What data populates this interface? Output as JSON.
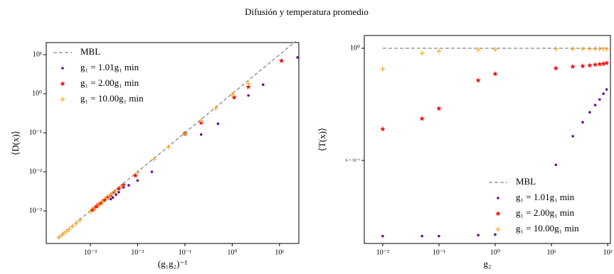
{
  "title": "Difusión y temperatura promedio",
  "chart_data": [
    {
      "type": "scatter",
      "x_label": "(g₁g₂)⁻¹",
      "y_label": "⟨D(x)⟩",
      "log_x": true,
      "log_y": true,
      "legend": "upper left",
      "xlim": [
        0.000117,
        25.6
      ],
      "ylim": [
        0.000146,
        20.4
      ],
      "xticks": [
        {
          "value": 0.001,
          "label": "10⁻³"
        },
        {
          "value": 0.01,
          "label": "10⁻²"
        },
        {
          "value": 0.1,
          "label": "10⁻¹"
        },
        {
          "value": 1,
          "label": "10⁰"
        },
        {
          "value": 10,
          "label": "10¹"
        }
      ],
      "yticks": [
        {
          "value": 0.001,
          "label": "10⁻³"
        },
        {
          "value": 0.01,
          "label": "10⁻²"
        },
        {
          "value": 0.1,
          "label": "10⁻¹"
        },
        {
          "value": 1,
          "label": "10⁰"
        },
        {
          "value": 10,
          "label": "10¹"
        }
      ],
      "series": [
        {
          "name": "MBL",
          "color": "#888888",
          "marker": "dashed-line",
          "x": [
            0.0002,
            22
          ],
          "values": [
            0.0002,
            22
          ]
        },
        {
          "name": "g₁ = 1.01g₁ min",
          "color": "#6a0d8a",
          "marker": "dot",
          "x": [
            0.0027,
            0.003,
            0.0035,
            0.004,
            0.005,
            0.0065,
            0.01,
            0.02,
            0.1,
            0.22,
            0.5,
            2.2,
            4.5,
            24
          ],
          "values": [
            0.002,
            0.0022,
            0.0026,
            0.003,
            0.004,
            0.0045,
            0.006,
            0.01,
            0.1,
            0.09,
            0.17,
            0.9,
            1.7,
            8.5
          ]
        },
        {
          "name": "g₁ = 2.00g₁ min",
          "color": "#ee1111",
          "marker": "star",
          "x": [
            0.0011,
            0.0012,
            0.00135,
            0.0015,
            0.0017,
            0.002,
            0.0023,
            0.0027,
            0.0032,
            0.004,
            0.005,
            0.009,
            0.1,
            0.22,
            1.1,
            2.2,
            11
          ],
          "values": [
            0.00105,
            0.00115,
            0.0013,
            0.00145,
            0.0016,
            0.0019,
            0.0022,
            0.0025,
            0.003,
            0.0037,
            0.0046,
            0.008,
            0.095,
            0.18,
            0.8,
            1.5,
            7
          ]
        },
        {
          "name": "g₁ = 10.00g₁ min",
          "color": "#f5a623",
          "marker": "plus",
          "x": [
            0.00022,
            0.00025,
            0.00028,
            0.00032,
            0.00036,
            0.00042,
            0.0005,
            0.0006,
            0.001,
            0.0012,
            0.0015,
            0.0018,
            0.0022,
            0.0027,
            0.0033,
            0.0045,
            0.01,
            0.022,
            0.045,
            0.1,
            0.22,
            0.45,
            1.0,
            2.2
          ],
          "values": [
            0.00021,
            0.00024,
            0.00027,
            0.0003,
            0.00034,
            0.0004,
            0.00047,
            0.00057,
            0.00095,
            0.00114,
            0.0014,
            0.0017,
            0.0021,
            0.0026,
            0.0031,
            0.0043,
            0.0095,
            0.021,
            0.043,
            0.095,
            0.21,
            0.43,
            0.95,
            1.8
          ]
        }
      ]
    },
    {
      "type": "scatter",
      "x_label": "g₂",
      "y_label": "⟨T(x)⟩",
      "log_x": true,
      "log_y": true,
      "legend": "lower right",
      "xlim": [
        0.0047,
        112
      ],
      "ylim": [
        0.411,
        1.06
      ],
      "xticks": [
        {
          "value": 0.01,
          "label": "10⁻²"
        },
        {
          "value": 0.1,
          "label": "10⁻¹"
        },
        {
          "value": 1,
          "label": "10⁰"
        },
        {
          "value": 10,
          "label": "10¹"
        },
        {
          "value": 100,
          "label": "10²"
        }
      ],
      "yticks": [
        {
          "value": 0.6,
          "label": "6 × 10⁻¹"
        },
        {
          "value": 1,
          "label": "10⁰"
        }
      ],
      "series": [
        {
          "name": "MBL",
          "color": "#888888",
          "marker": "dashed-line",
          "x": [
            0.01,
            100
          ],
          "values": [
            1,
            1
          ]
        },
        {
          "name": "g₁ = 1.01g₁ min",
          "color": "#6a0d8a",
          "marker": "dot",
          "x": [
            0.01,
            0.05,
            0.1,
            0.5,
            1,
            12,
            24,
            36,
            48,
            60,
            72,
            84,
            96
          ],
          "values": [
            0.425,
            0.425,
            0.425,
            0.427,
            0.428,
            0.588,
            0.67,
            0.714,
            0.747,
            0.772,
            0.792,
            0.813,
            0.829
          ]
        },
        {
          "name": "g₁ = 2.00g₁ min",
          "color": "#ee1111",
          "marker": "star",
          "x": [
            0.01,
            0.05,
            0.1,
            0.5,
            1,
            12,
            24,
            36,
            48,
            60,
            72,
            84,
            96
          ],
          "values": [
            0.692,
            0.726,
            0.76,
            0.864,
            0.89,
            0.913,
            0.92,
            0.922,
            0.925,
            0.928,
            0.93,
            0.932,
            0.935
          ]
        },
        {
          "name": "g₁ = 10.00g₁ min",
          "color": "#f5a623",
          "marker": "plus",
          "x": [
            0.01,
            0.05,
            0.1,
            0.5,
            1,
            12,
            24,
            36,
            48,
            60,
            72,
            84,
            96
          ],
          "values": [
            0.91,
            0.978,
            0.987,
            0.993,
            0.994,
            0.997,
            0.997,
            0.997,
            0.997,
            0.997,
            0.997,
            0.997,
            0.997
          ]
        }
      ]
    }
  ]
}
